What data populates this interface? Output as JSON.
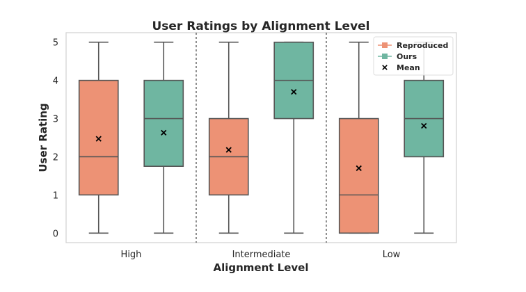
{
  "chart_data": {
    "type": "box",
    "title": "User Ratings by Alignment Level",
    "xlabel": "Alignment Level",
    "ylabel": "User Rating",
    "categories": [
      "High",
      "Intermediate",
      "Low"
    ],
    "ylim": [
      -0.25,
      5.25
    ],
    "yticks": [
      "0",
      "1",
      "2",
      "3",
      "4",
      "5"
    ],
    "grid": false,
    "legend_position": "top-right",
    "series": [
      {
        "name": "Reproduced",
        "color": "#ed9275",
        "boxes": [
          {
            "whisker_low": 0,
            "q1": 1,
            "median": 2,
            "q3": 4,
            "whisker_high": 5,
            "mean": 2.47
          },
          {
            "whisker_low": 0,
            "q1": 1,
            "median": 2,
            "q3": 3,
            "whisker_high": 5,
            "mean": 2.18
          },
          {
            "whisker_low": 0,
            "q1": 0,
            "median": 1,
            "q3": 3,
            "whisker_high": 5,
            "mean": 1.7
          }
        ]
      },
      {
        "name": "Ours",
        "color": "#6fb6a1",
        "boxes": [
          {
            "whisker_low": 0,
            "q1": 1.75,
            "median": 3,
            "q3": 4,
            "whisker_high": 5,
            "mean": 2.63
          },
          {
            "whisker_low": 0,
            "q1": 3,
            "median": 4,
            "q3": 5,
            "whisker_high": 5,
            "mean": 3.7
          },
          {
            "whisker_low": 0,
            "q1": 2,
            "median": 3,
            "q3": 4,
            "whisker_high": 5,
            "mean": 2.81
          }
        ]
      }
    ],
    "legend": [
      {
        "label": "Reproduced",
        "color": "#ed9275",
        "marker": "square-line"
      },
      {
        "label": "Ours",
        "color": "#6fb6a1",
        "marker": "square-line"
      },
      {
        "label": "Mean",
        "color": "#000000",
        "marker": "x"
      }
    ]
  }
}
